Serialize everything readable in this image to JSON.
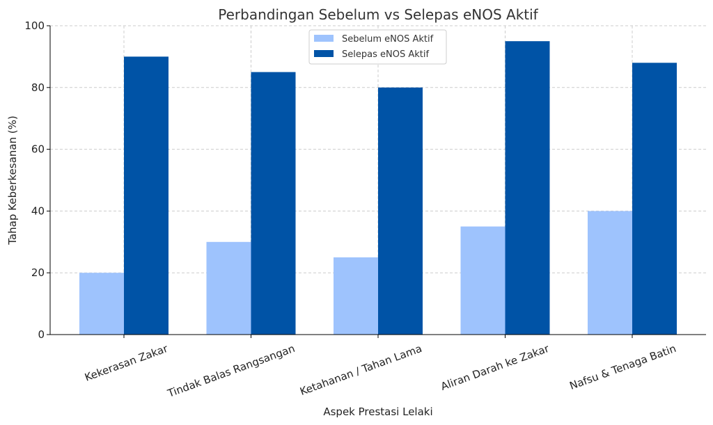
{
  "chart_data": {
    "type": "bar",
    "title": "Perbandingan Sebelum vs Selepas eNOS Aktif",
    "xlabel": "Aspek Prestasi Lelaki",
    "ylabel": "Tahap Keberkesanan (%)",
    "ylim": [
      0,
      100
    ],
    "yticks": [
      0,
      20,
      40,
      60,
      80,
      100
    ],
    "grid": true,
    "legend_position": "top-center",
    "categories": [
      "Kekerasan Zakar",
      "Tindak Balas Rangsangan",
      "Ketahanan / Tahan Lama",
      "Aliran Darah ke Zakar",
      "Nafsu & Tenaga Batin"
    ],
    "series": [
      {
        "name": "Sebelum eNOS Aktif",
        "color": "#9ec3fd",
        "values": [
          20,
          30,
          25,
          35,
          40
        ]
      },
      {
        "name": "Selepas eNOS Aktif",
        "color": "#0053a6",
        "values": [
          90,
          85,
          80,
          95,
          88
        ]
      }
    ]
  }
}
